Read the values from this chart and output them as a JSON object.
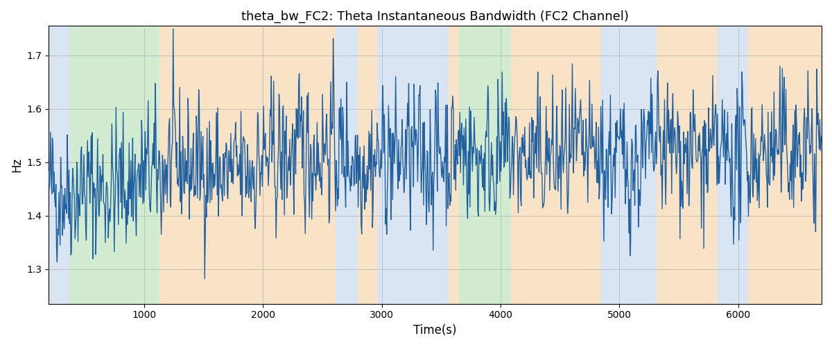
{
  "title": "theta_bw_FC2: Theta Instantaneous Bandwidth (FC2 Channel)",
  "xlabel": "Time(s)",
  "ylabel": "Hz",
  "xlim": [
    200,
    6700
  ],
  "ylim": [
    1.235,
    1.755
  ],
  "yticks": [
    1.3,
    1.4,
    1.5,
    1.6,
    1.7
  ],
  "xticks": [
    1000,
    2000,
    3000,
    4000,
    5000,
    6000
  ],
  "line_color": "#2060a0",
  "line_width": 1.0,
  "grid_color": "#aaaaaa",
  "grid_alpha": 0.6,
  "background_color": "#ffffff",
  "bg_bands": [
    {
      "xmin": 200,
      "xmax": 380,
      "color": "#aec6e8",
      "alpha": 0.45
    },
    {
      "xmin": 380,
      "xmax": 1130,
      "color": "#90d090",
      "alpha": 0.4
    },
    {
      "xmin": 1130,
      "xmax": 2610,
      "color": "#f5c890",
      "alpha": 0.5
    },
    {
      "xmin": 2610,
      "xmax": 2800,
      "color": "#aec6e8",
      "alpha": 0.45
    },
    {
      "xmin": 2800,
      "xmax": 2960,
      "color": "#f5c890",
      "alpha": 0.5
    },
    {
      "xmin": 2960,
      "xmax": 3560,
      "color": "#aec6e8",
      "alpha": 0.45
    },
    {
      "xmin": 3560,
      "xmax": 3650,
      "color": "#f5c890",
      "alpha": 0.5
    },
    {
      "xmin": 3650,
      "xmax": 4090,
      "color": "#90d090",
      "alpha": 0.4
    },
    {
      "xmin": 4090,
      "xmax": 4840,
      "color": "#f5c890",
      "alpha": 0.5
    },
    {
      "xmin": 4840,
      "xmax": 5310,
      "color": "#aec6e8",
      "alpha": 0.45
    },
    {
      "xmin": 5310,
      "xmax": 5820,
      "color": "#f5c890",
      "alpha": 0.5
    },
    {
      "xmin": 5820,
      "xmax": 6080,
      "color": "#aec6e8",
      "alpha": 0.45
    },
    {
      "xmin": 6080,
      "xmax": 6700,
      "color": "#f5c890",
      "alpha": 0.5
    }
  ],
  "seed": 42,
  "n_points": 1300,
  "time_start": 200,
  "time_end": 6700,
  "signal_mean": 1.5,
  "signal_std": 0.065
}
